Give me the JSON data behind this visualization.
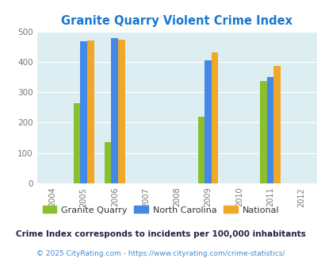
{
  "title": "Granite Quarry Violent Crime Index",
  "title_color": "#1878d0",
  "years": [
    2004,
    2005,
    2006,
    2007,
    2008,
    2009,
    2010,
    2011,
    2012
  ],
  "bar_years": [
    2005,
    2006,
    2009,
    2011
  ],
  "granite_quarry": [
    265,
    135,
    220,
    337
  ],
  "north_carolina": [
    468,
    477,
    406,
    350
  ],
  "national": [
    470,
    472,
    432,
    387
  ],
  "gq_color": "#88c030",
  "nc_color": "#4488e8",
  "nat_color": "#f0a828",
  "bg_color": "#ddeef2",
  "ylim": [
    0,
    500
  ],
  "yticks": [
    0,
    100,
    200,
    300,
    400,
    500
  ],
  "tick_color": "#777777",
  "legend_labels": [
    "Granite Quarry",
    "North Carolina",
    "National"
  ],
  "legend_text_color": "#333333",
  "footnote1": "Crime Index corresponds to incidents per 100,000 inhabitants",
  "footnote2": "© 2025 CityRating.com - https://www.cityrating.com/crime-statistics/",
  "footnote1_color": "#222244",
  "footnote2_color": "#4488cc",
  "bar_width": 0.22
}
